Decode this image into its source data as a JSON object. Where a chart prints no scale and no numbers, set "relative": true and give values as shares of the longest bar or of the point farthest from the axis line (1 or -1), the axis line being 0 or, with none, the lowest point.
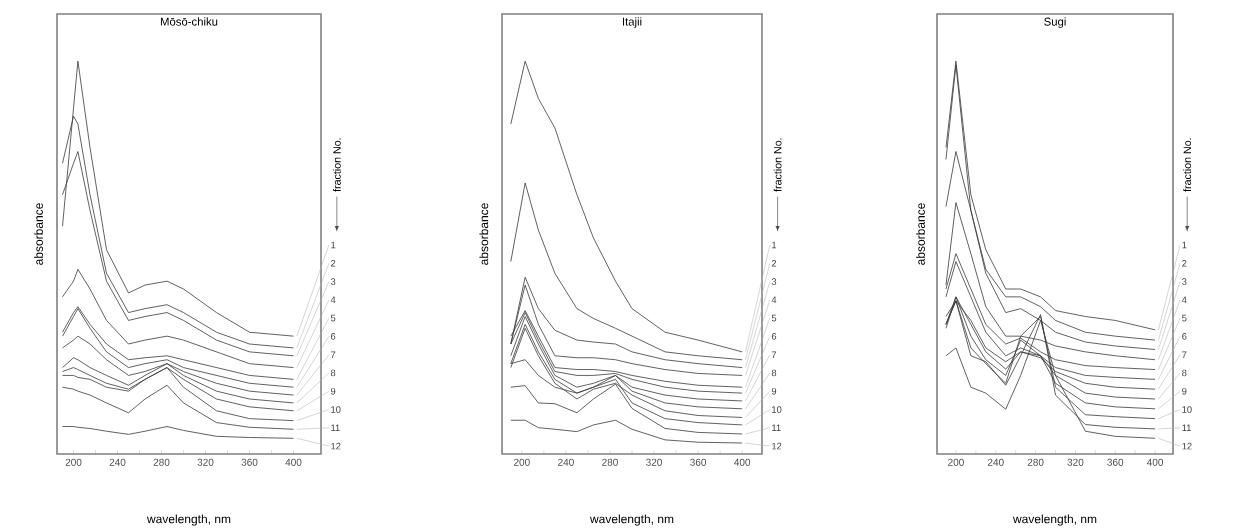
{
  "chart_data": [
    {
      "type": "line",
      "title": "Mōsō-chiku",
      "xlabel": "wavelength,   nm",
      "ylabel": "absorbance",
      "relative": true,
      "color": "#3a3a3a",
      "annotations": [
        "fraction  No."
      ],
      "xlim": [
        185,
        425
      ],
      "xticks": [
        200,
        {
          "value": 220,
          "label": null
        },
        240,
        {
          "value": 260,
          "label": null
        },
        280,
        {
          "value": 300,
          "label": null
        },
        320,
        {
          "value": 340,
          "label": null
        },
        360,
        {
          "value": 380,
          "label": null
        },
        400
      ],
      "x": [
        190,
        200,
        204,
        215,
        230,
        250,
        265,
        285,
        300,
        330,
        360,
        400
      ],
      "series": [
        {
          "name": "1",
          "values": [
            0.58,
            0.88,
            1.0,
            0.78,
            0.52,
            0.41,
            0.43,
            0.44,
            0.42,
            0.36,
            0.31,
            0.3
          ]
        },
        {
          "name": "2",
          "values": [
            0.74,
            0.86,
            0.84,
            0.66,
            0.46,
            0.36,
            0.37,
            0.38,
            0.36,
            0.31,
            0.28,
            0.27
          ]
        },
        {
          "name": "3",
          "values": [
            0.66,
            0.74,
            0.77,
            0.62,
            0.44,
            0.34,
            0.35,
            0.36,
            0.34,
            0.29,
            0.26,
            0.25
          ]
        },
        {
          "name": "4",
          "values": [
            0.4,
            0.44,
            0.47,
            0.42,
            0.34,
            0.28,
            0.29,
            0.3,
            0.29,
            0.26,
            0.23,
            0.22
          ]
        },
        {
          "name": "5",
          "values": [
            0.31,
            0.36,
            0.375,
            0.33,
            0.28,
            0.24,
            0.245,
            0.25,
            0.24,
            0.22,
            0.2,
            0.19
          ]
        },
        {
          "name": "6",
          "values": [
            0.3,
            0.35,
            0.37,
            0.32,
            0.26,
            0.22,
            0.23,
            0.24,
            0.22,
            0.2,
            0.18,
            0.17
          ]
        },
        {
          "name": "7",
          "values": [
            0.27,
            0.29,
            0.3,
            0.28,
            0.24,
            0.2,
            0.21,
            0.23,
            0.21,
            0.18,
            0.16,
            0.15
          ]
        },
        {
          "name": "8",
          "values": [
            0.22,
            0.245,
            0.24,
            0.22,
            0.2,
            0.175,
            0.2,
            0.23,
            0.2,
            0.16,
            0.14,
            0.13
          ]
        },
        {
          "name": "9",
          "values": [
            0.21,
            0.22,
            0.215,
            0.2,
            0.18,
            0.165,
            0.19,
            0.22,
            0.19,
            0.14,
            0.12,
            0.11
          ]
        },
        {
          "name": "10",
          "values": [
            0.2,
            0.2,
            0.195,
            0.19,
            0.17,
            0.16,
            0.19,
            0.22,
            0.17,
            0.11,
            0.09,
            0.085
          ]
        },
        {
          "name": "11",
          "values": [
            0.17,
            0.165,
            0.16,
            0.15,
            0.13,
            0.105,
            0.14,
            0.175,
            0.13,
            0.08,
            0.068,
            0.063
          ]
        },
        {
          "name": "12",
          "values": [
            0.07,
            0.07,
            0.068,
            0.065,
            0.058,
            0.05,
            0.058,
            0.07,
            0.06,
            0.045,
            0.042,
            0.04
          ]
        }
      ]
    },
    {
      "type": "line",
      "title": "Itajii",
      "xlabel": "wavelength,   nm",
      "ylabel": "absorbance",
      "relative": true,
      "color": "#3a3a3a",
      "annotations": [
        "fraction  No."
      ],
      "xlim": [
        182,
        418
      ],
      "xticks": [
        200,
        {
          "value": 220,
          "label": null
        },
        240,
        {
          "value": 260,
          "label": null
        },
        280,
        {
          "value": 300,
          "label": null
        },
        320,
        {
          "value": 340,
          "label": null
        },
        360,
        {
          "value": 380,
          "label": null
        },
        400
      ],
      "x": [
        190,
        203,
        215,
        230,
        250,
        265,
        285,
        300,
        330,
        360,
        400
      ],
      "series": [
        {
          "name": "1",
          "values": [
            0.84,
            1.0,
            0.905,
            0.83,
            0.66,
            0.55,
            0.44,
            0.37,
            0.31,
            0.29,
            0.26
          ]
        },
        {
          "name": "2",
          "values": [
            0.49,
            0.69,
            0.57,
            0.46,
            0.37,
            0.345,
            0.32,
            0.3,
            0.26,
            0.25,
            0.24
          ]
        },
        {
          "name": "3",
          "values": [
            0.28,
            0.45,
            0.37,
            0.315,
            0.29,
            0.285,
            0.28,
            0.26,
            0.24,
            0.23,
            0.22
          ]
        },
        {
          "name": "4",
          "values": [
            0.28,
            0.43,
            0.33,
            0.25,
            0.245,
            0.245,
            0.24,
            0.23,
            0.215,
            0.205,
            0.2
          ]
        },
        {
          "name": "5",
          "values": [
            0.3,
            0.365,
            0.3,
            0.22,
            0.215,
            0.215,
            0.21,
            0.2,
            0.185,
            0.175,
            0.17
          ]
        },
        {
          "name": "6",
          "values": [
            0.28,
            0.36,
            0.29,
            0.21,
            0.2,
            0.2,
            0.205,
            0.19,
            0.17,
            0.16,
            0.155
          ]
        },
        {
          "name": "7",
          "values": [
            0.25,
            0.35,
            0.28,
            0.2,
            0.17,
            0.18,
            0.2,
            0.17,
            0.15,
            0.14,
            0.135
          ]
        },
        {
          "name": "8",
          "values": [
            0.23,
            0.33,
            0.26,
            0.19,
            0.155,
            0.17,
            0.2,
            0.16,
            0.13,
            0.12,
            0.115
          ]
        },
        {
          "name": "9",
          "values": [
            0.22,
            0.32,
            0.25,
            0.18,
            0.14,
            0.165,
            0.18,
            0.15,
            0.11,
            0.098,
            0.093
          ]
        },
        {
          "name": "10",
          "values": [
            0.23,
            0.24,
            0.2,
            0.17,
            0.155,
            0.17,
            0.19,
            0.13,
            0.09,
            0.08,
            0.074
          ]
        },
        {
          "name": "11",
          "values": [
            0.17,
            0.174,
            0.13,
            0.128,
            0.105,
            0.14,
            0.178,
            0.116,
            0.065,
            0.055,
            0.051
          ]
        },
        {
          "name": "12",
          "values": [
            0.086,
            0.086,
            0.067,
            0.063,
            0.057,
            0.074,
            0.086,
            0.063,
            0.036,
            0.03,
            0.028
          ]
        }
      ]
    },
    {
      "type": "line",
      "title": "Sugi",
      "xlabel": "wavelength,   nm",
      "ylabel": "absorbance",
      "relative": true,
      "color": "#3a3a3a",
      "annotations": [
        "fraction  No."
      ],
      "xlim": [
        181,
        418
      ],
      "xticks": [
        200,
        {
          "value": 220,
          "label": null
        },
        240,
        {
          "value": 260,
          "label": null
        },
        280,
        {
          "value": 300,
          "label": null
        },
        320,
        {
          "value": 340,
          "label": null
        },
        360,
        {
          "value": 380,
          "label": null
        },
        400
      ],
      "x": [
        190,
        200,
        215,
        230,
        250,
        265,
        285,
        300,
        330,
        360,
        400
      ],
      "series": [
        {
          "name": "1",
          "values": [
            0.78,
            1.0,
            0.66,
            0.52,
            0.42,
            0.42,
            0.4,
            0.365,
            0.35,
            0.34,
            0.316
          ]
        },
        {
          "name": "2",
          "values": [
            0.75,
            0.99,
            0.62,
            0.47,
            0.4,
            0.4,
            0.375,
            0.34,
            0.31,
            0.3,
            0.29
          ]
        },
        {
          "name": "3",
          "values": [
            0.63,
            0.77,
            0.62,
            0.46,
            0.36,
            0.37,
            0.34,
            0.31,
            0.285,
            0.275,
            0.266
          ]
        },
        {
          "name": "4",
          "values": [
            0.43,
            0.64,
            0.51,
            0.375,
            0.3,
            0.3,
            0.29,
            0.275,
            0.26,
            0.25,
            0.24
          ]
        },
        {
          "name": "5",
          "values": [
            0.42,
            0.51,
            0.42,
            0.33,
            0.28,
            0.295,
            0.26,
            0.24,
            0.225,
            0.22,
            0.215
          ]
        },
        {
          "name": "6",
          "values": [
            0.4,
            0.49,
            0.4,
            0.31,
            0.25,
            0.27,
            0.25,
            0.22,
            0.2,
            0.195,
            0.19
          ]
        },
        {
          "name": "7",
          "values": [
            0.35,
            0.39,
            0.34,
            0.27,
            0.235,
            0.26,
            0.245,
            0.21,
            0.18,
            0.17,
            0.165
          ]
        },
        {
          "name": "8",
          "values": [
            0.33,
            0.4,
            0.33,
            0.26,
            0.216,
            0.26,
            0.25,
            0.2,
            0.155,
            0.145,
            0.14
          ]
        },
        {
          "name": "9",
          "values": [
            0.32,
            0.4,
            0.3,
            0.24,
            0.2,
            0.29,
            0.25,
            0.18,
            0.13,
            0.12,
            0.115
          ]
        },
        {
          "name": "10",
          "values": [
            0.33,
            0.39,
            0.27,
            0.23,
            0.18,
            0.3,
            0.35,
            0.17,
            0.1,
            0.095,
            0.09
          ]
        },
        {
          "name": "11",
          "values": [
            0.33,
            0.39,
            0.25,
            0.235,
            0.175,
            0.25,
            0.355,
            0.15,
            0.075,
            0.068,
            0.064
          ]
        },
        {
          "name": "12",
          "values": [
            0.25,
            0.27,
            0.17,
            0.155,
            0.114,
            0.2,
            0.34,
            0.2,
            0.058,
            0.045,
            0.04
          ]
        }
      ]
    }
  ]
}
